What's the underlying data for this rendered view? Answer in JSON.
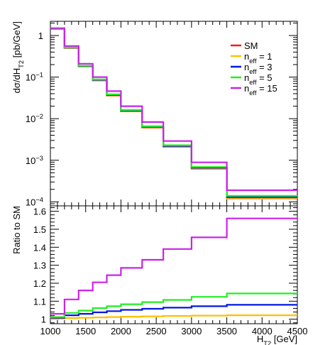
{
  "chart_data": {
    "type": "line",
    "step": true,
    "x_edges": [
      1000,
      1200,
      1400,
      1600,
      1800,
      2000,
      2300,
      2600,
      3000,
      3500,
      4500
    ],
    "xlim": [
      1000,
      4500
    ],
    "x_ticks": [
      1000,
      1500,
      2000,
      2500,
      3000,
      3500,
      4000,
      4500
    ],
    "xlabel": {
      "main": "H",
      "sub": "T2",
      "unit": " [GeV]"
    },
    "top_panel": {
      "ylabel": {
        "pre": "dσ/dH",
        "sub": "T2",
        "post": " [pb/GeV]"
      },
      "y_scale": "log",
      "ylim": [
        8e-05,
        2.2
      ],
      "y_ticks": [
        {
          "base": "1",
          "exp": ""
        },
        {
          "base": "10",
          "exp": "−1"
        },
        {
          "base": "10",
          "exp": "−2"
        },
        {
          "base": "10",
          "exp": "−3"
        },
        {
          "base": "10",
          "exp": "−4"
        }
      ],
      "y_tick_values": [
        1,
        0.1,
        0.01,
        0.001,
        0.0001
      ],
      "series": [
        {
          "name": "SM",
          "color": "#e8231c",
          "values": [
            1.45,
            0.5,
            0.18,
            0.083,
            0.036,
            0.015,
            0.0061,
            0.0021,
            0.00062,
            0.000122
          ]
        },
        {
          "name": "n_eff = 1",
          "color": "#ffc000",
          "values": [
            1.46,
            0.505,
            0.182,
            0.084,
            0.0365,
            0.0152,
            0.0062,
            0.00213,
            0.00063,
            0.000125
          ]
        },
        {
          "name": "n_eff = 3",
          "color": "#0018e0",
          "values": [
            1.47,
            0.51,
            0.185,
            0.086,
            0.0375,
            0.0157,
            0.0064,
            0.0022,
            0.00066,
            0.000131
          ]
        },
        {
          "name": "n_eff = 5",
          "color": "#22ee22",
          "values": [
            1.48,
            0.515,
            0.188,
            0.088,
            0.0385,
            0.0162,
            0.0066,
            0.0023,
            0.00069,
            0.000139
          ]
        },
        {
          "name": "n_eff = 15",
          "color": "#cc22e8",
          "values": [
            1.5,
            0.56,
            0.21,
            0.1,
            0.046,
            0.02,
            0.0083,
            0.0029,
            0.00089,
            0.00019
          ]
        }
      ]
    },
    "bottom_panel": {
      "ylabel": "Ratio to SM",
      "ylim": [
        0.975,
        1.63
      ],
      "y_ticks": [
        1,
        1.1,
        1.2,
        1.3,
        1.4,
        1.5,
        1.6
      ],
      "y_tick_labels": [
        "1",
        "1.1",
        "1.2",
        "1.3",
        "1.4",
        "1.5",
        "1.6"
      ],
      "series": [
        {
          "name": "n_eff = 1",
          "color": "#ffc000",
          "values": [
            1.003,
            1.006,
            1.008,
            1.01,
            1.012,
            1.014,
            1.016,
            1.018,
            1.02,
            1.022
          ]
        },
        {
          "name": "n_eff = 3",
          "color": "#0018e0",
          "values": [
            1.008,
            1.022,
            1.03,
            1.038,
            1.045,
            1.052,
            1.058,
            1.064,
            1.072,
            1.08
          ]
        },
        {
          "name": "n_eff = 5",
          "color": "#22ee22",
          "values": [
            1.012,
            1.035,
            1.048,
            1.062,
            1.072,
            1.083,
            1.095,
            1.107,
            1.124,
            1.143
          ]
        },
        {
          "name": "n_eff = 15",
          "color": "#cc22e8",
          "values": [
            1.03,
            1.11,
            1.16,
            1.205,
            1.245,
            1.285,
            1.33,
            1.39,
            1.455,
            1.56
          ]
        }
      ]
    },
    "legend": {
      "placement": "top-right",
      "entries": [
        {
          "pre": "SM",
          "sub": "",
          "post": "",
          "color": "#e8231c"
        },
        {
          "pre": "n",
          "sub": "eff",
          "post": " = 1",
          "color": "#ffc000"
        },
        {
          "pre": "n",
          "sub": "eff",
          "post": " = 3",
          "color": "#0018e0"
        },
        {
          "pre": "n",
          "sub": "eff",
          "post": " = 5",
          "color": "#22ee22"
        },
        {
          "pre": "n",
          "sub": "eff",
          "post": " = 15",
          "color": "#cc22e8"
        }
      ]
    }
  }
}
